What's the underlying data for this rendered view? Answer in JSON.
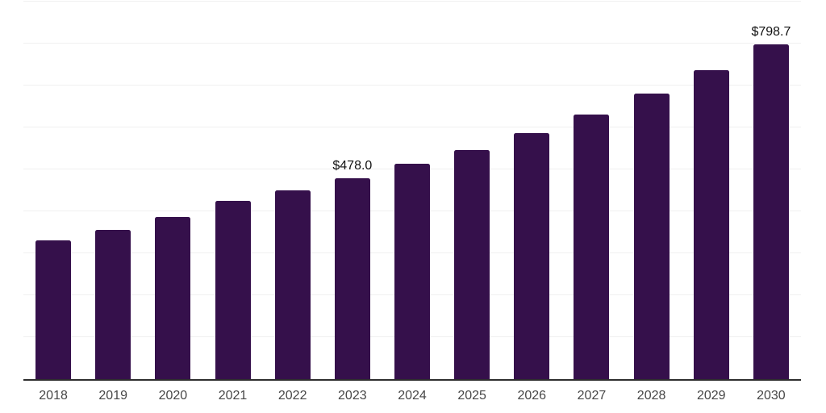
{
  "chart_data": {
    "type": "bar",
    "categories": [
      "2018",
      "2019",
      "2020",
      "2021",
      "2022",
      "2023",
      "2024",
      "2025",
      "2026",
      "2027",
      "2028",
      "2029",
      "2030"
    ],
    "values": [
      330,
      355,
      387,
      425,
      450,
      478.0,
      513,
      546,
      587,
      630,
      680,
      737,
      798.7
    ],
    "data_labels": [
      "",
      "",
      "",
      "",
      "",
      "$478.0",
      "",
      "",
      "",
      "",
      "",
      "",
      "$798.7"
    ],
    "ylim": [
      0,
      900
    ],
    "gridline_step": 100,
    "grid": "horizontal",
    "legend": "none",
    "xlabel": "",
    "ylabel": "",
    "colors": {
      "bar": "#35104B",
      "gridline": "#f0f0f0",
      "axis_line": "#2e2e2e",
      "tick_label": "#474747",
      "data_label": "#111111",
      "background": "#ffffff"
    }
  }
}
